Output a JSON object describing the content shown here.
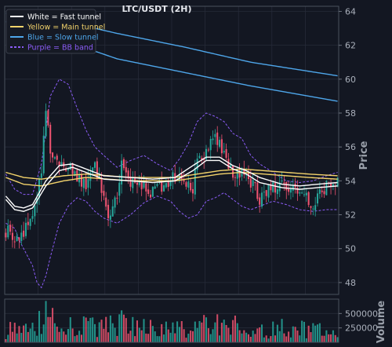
{
  "chart_data": {
    "type": "candlestick",
    "title": "LTC/USDT (2H)",
    "colors": {
      "background": "#131722",
      "grid": "#262b38",
      "up": "#26a69a",
      "down": "#ef5370",
      "fast": "#ffffff",
      "main": "#f3d36b",
      "slow": "#4ea6ea",
      "bb": "#8b5cf6",
      "axis": "#555b66"
    },
    "price_axis": {
      "label": "Price",
      "ylim": [
        47.3,
        64.3
      ],
      "ticks": [
        48,
        50,
        52,
        54,
        56,
        58,
        60,
        62,
        64
      ],
      "tick_labels": [
        "48",
        "50",
        "52",
        "54",
        "56",
        "58",
        "60",
        "62",
        "64"
      ]
    },
    "volume_axis": {
      "label": "Volume",
      "ylim": [
        0,
        750000
      ],
      "ticks": [
        250000,
        500000
      ],
      "tick_labels": [
        "250000",
        "500000"
      ]
    },
    "legend": {
      "placement": "top-left",
      "items": [
        {
          "label": "White = Fast tunnel",
          "color": "#ffffff",
          "style": "solid"
        },
        {
          "label": "Yellow = Main tunnel",
          "color": "#f3d36b",
          "style": "solid"
        },
        {
          "label": "Blue = Slow tunnel",
          "color": "#4ea6ea",
          "style": "solid"
        },
        {
          "label": "Purple = BB band",
          "color": "#8b5cf6",
          "style": "dashed"
        }
      ]
    },
    "grid": true,
    "bar_count": 150,
    "price_anchors": [
      [
        0,
        51.0
      ],
      [
        6,
        50.6
      ],
      [
        12,
        52.0
      ],
      [
        16,
        54.5
      ],
      [
        18,
        58.2
      ],
      [
        20,
        56.0
      ],
      [
        23,
        55.3
      ],
      [
        28,
        54.7
      ],
      [
        32,
        54.3
      ],
      [
        36,
        53.8
      ],
      [
        40,
        54.9
      ],
      [
        42,
        54.2
      ],
      [
        46,
        52.1
      ],
      [
        50,
        53.2
      ],
      [
        52,
        54.8
      ],
      [
        56,
        53.8
      ],
      [
        60,
        54.1
      ],
      [
        64,
        53.4
      ],
      [
        70,
        53.8
      ],
      [
        76,
        54.2
      ],
      [
        80,
        54.0
      ],
      [
        84,
        53.7
      ],
      [
        86,
        55.5
      ],
      [
        90,
        55.6
      ],
      [
        94,
        56.8
      ],
      [
        98,
        55.6
      ],
      [
        102,
        54.4
      ],
      [
        106,
        54.7
      ],
      [
        110,
        53.9
      ],
      [
        114,
        53.0
      ],
      [
        118,
        53.5
      ],
      [
        124,
        53.7
      ],
      [
        130,
        53.3
      ],
      [
        134,
        53.0
      ],
      [
        138,
        52.6
      ],
      [
        142,
        53.5
      ],
      [
        146,
        54.0
      ],
      [
        149,
        53.8
      ]
    ],
    "fast_tunnel": {
      "upper": [
        [
          0,
          53.1
        ],
        [
          4,
          52.5
        ],
        [
          8,
          52.4
        ],
        [
          12,
          52.6
        ],
        [
          18,
          54.0
        ],
        [
          24,
          54.9
        ],
        [
          30,
          55.0
        ],
        [
          36,
          54.7
        ],
        [
          44,
          54.3
        ],
        [
          56,
          54.2
        ],
        [
          66,
          54.1
        ],
        [
          76,
          54.2
        ],
        [
          84,
          54.9
        ],
        [
          90,
          55.4
        ],
        [
          96,
          55.4
        ],
        [
          102,
          54.9
        ],
        [
          108,
          54.6
        ],
        [
          114,
          54.2
        ],
        [
          124,
          53.8
        ],
        [
          132,
          53.7
        ],
        [
          140,
          53.8
        ],
        [
          149,
          53.9
        ]
      ],
      "lower": [
        [
          0,
          52.9
        ],
        [
          4,
          52.3
        ],
        [
          8,
          52.2
        ],
        [
          12,
          52.4
        ],
        [
          18,
          53.7
        ],
        [
          24,
          54.6
        ],
        [
          30,
          54.8
        ],
        [
          36,
          54.5
        ],
        [
          44,
          54.1
        ],
        [
          56,
          54.0
        ],
        [
          66,
          53.9
        ],
        [
          76,
          54.0
        ],
        [
          84,
          54.6
        ],
        [
          90,
          55.2
        ],
        [
          96,
          55.2
        ],
        [
          102,
          54.7
        ],
        [
          108,
          54.4
        ],
        [
          114,
          53.9
        ],
        [
          124,
          53.6
        ],
        [
          132,
          53.5
        ],
        [
          140,
          53.6
        ],
        [
          149,
          53.7
        ]
      ]
    },
    "main_tunnel": {
      "upper": [
        [
          0,
          54.5
        ],
        [
          8,
          54.2
        ],
        [
          16,
          54.1
        ],
        [
          26,
          54.3
        ],
        [
          36,
          54.4
        ],
        [
          46,
          54.3
        ],
        [
          56,
          54.2
        ],
        [
          66,
          54.2
        ],
        [
          76,
          54.2
        ],
        [
          86,
          54.4
        ],
        [
          96,
          54.6
        ],
        [
          106,
          54.7
        ],
        [
          116,
          54.6
        ],
        [
          126,
          54.5
        ],
        [
          136,
          54.4
        ],
        [
          149,
          54.3
        ]
      ],
      "lower": [
        [
          0,
          54.2
        ],
        [
          8,
          53.8
        ],
        [
          16,
          53.7
        ],
        [
          26,
          54.0
        ],
        [
          36,
          54.2
        ],
        [
          46,
          54.1
        ],
        [
          56,
          54.0
        ],
        [
          66,
          54.0
        ],
        [
          76,
          54.0
        ],
        [
          86,
          54.2
        ],
        [
          96,
          54.4
        ],
        [
          106,
          54.5
        ],
        [
          116,
          54.4
        ],
        [
          126,
          54.3
        ],
        [
          136,
          54.2
        ],
        [
          149,
          54.1
        ]
      ]
    },
    "slow_tunnel": {
      "upper": [
        [
          0,
          63.9
        ],
        [
          30,
          63.3
        ],
        [
          50,
          62.7
        ],
        [
          80,
          61.9
        ],
        [
          110,
          61.0
        ],
        [
          149,
          60.2
        ]
      ],
      "lower": [
        [
          0,
          63.4
        ],
        [
          30,
          62.1
        ],
        [
          50,
          61.2
        ],
        [
          80,
          60.4
        ],
        [
          110,
          59.6
        ],
        [
          149,
          58.7
        ]
      ]
    },
    "bb_band": {
      "upper": [
        [
          0,
          54.4
        ],
        [
          4,
          53.5
        ],
        [
          8,
          53.2
        ],
        [
          12,
          53.2
        ],
        [
          16,
          55.0
        ],
        [
          20,
          59.0
        ],
        [
          24,
          60.0
        ],
        [
          28,
          59.7
        ],
        [
          32,
          58.3
        ],
        [
          36,
          57.0
        ],
        [
          40,
          56.0
        ],
        [
          44,
          55.5
        ],
        [
          50,
          54.8
        ],
        [
          56,
          55.2
        ],
        [
          62,
          55.5
        ],
        [
          68,
          55.0
        ],
        [
          74,
          54.6
        ],
        [
          78,
          55.3
        ],
        [
          82,
          56.2
        ],
        [
          86,
          57.5
        ],
        [
          90,
          58.0
        ],
        [
          94,
          57.8
        ],
        [
          98,
          57.5
        ],
        [
          102,
          56.8
        ],
        [
          106,
          56.5
        ],
        [
          110,
          55.5
        ],
        [
          114,
          55.0
        ],
        [
          120,
          54.5
        ],
        [
          126,
          54.0
        ],
        [
          132,
          53.9
        ],
        [
          138,
          54.0
        ],
        [
          144,
          54.3
        ],
        [
          149,
          54.5
        ]
      ],
      "lower": [
        [
          0,
          51.5
        ],
        [
          4,
          51.2
        ],
        [
          6,
          50.5
        ],
        [
          8,
          50.0
        ],
        [
          12,
          49.0
        ],
        [
          14,
          48.0
        ],
        [
          16,
          47.7
        ],
        [
          18,
          48.4
        ],
        [
          20,
          49.5
        ],
        [
          24,
          51.5
        ],
        [
          28,
          52.5
        ],
        [
          32,
          53.0
        ],
        [
          36,
          52.8
        ],
        [
          40,
          52.2
        ],
        [
          44,
          51.8
        ],
        [
          50,
          51.5
        ],
        [
          56,
          52.0
        ],
        [
          62,
          52.7
        ],
        [
          68,
          53.1
        ],
        [
          74,
          52.8
        ],
        [
          78,
          52.2
        ],
        [
          82,
          51.8
        ],
        [
          86,
          52.0
        ],
        [
          90,
          52.8
        ],
        [
          94,
          53.0
        ],
        [
          98,
          53.3
        ],
        [
          102,
          52.9
        ],
        [
          106,
          52.5
        ],
        [
          110,
          52.3
        ],
        [
          114,
          52.5
        ],
        [
          120,
          52.8
        ],
        [
          126,
          52.6
        ],
        [
          132,
          52.3
        ],
        [
          138,
          52.2
        ],
        [
          144,
          52.3
        ],
        [
          149,
          52.3
        ]
      ]
    },
    "volume_anchors": [
      [
        0,
        200000
      ],
      [
        10,
        260000
      ],
      [
        18,
        420000
      ],
      [
        24,
        300000
      ],
      [
        30,
        250000
      ],
      [
        40,
        280000
      ],
      [
        50,
        380000
      ],
      [
        60,
        250000
      ],
      [
        70,
        230000
      ],
      [
        80,
        220000
      ],
      [
        90,
        330000
      ],
      [
        100,
        280000
      ],
      [
        110,
        250000
      ],
      [
        120,
        230000
      ],
      [
        130,
        250000
      ],
      [
        140,
        210000
      ],
      [
        149,
        200000
      ]
    ]
  }
}
